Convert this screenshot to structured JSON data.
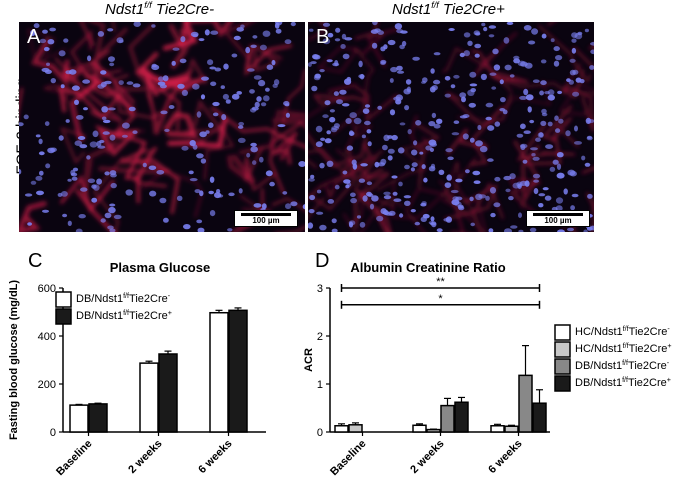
{
  "micrographs": {
    "left": {
      "letter": "A",
      "title_base": "Ndst1",
      "title_sup": "f/f",
      "title_rest": " Tie2Cre-",
      "scale_label": "100 µm"
    },
    "right": {
      "letter": "B",
      "title_base": "Ndst1",
      "title_sup": "f/f",
      "title_rest": " Tie2Cre+",
      "scale_label": "100 µm"
    },
    "row_label": "FGF-2 binding",
    "colors": {
      "background": "#0a0410",
      "vessel": "#d8204a",
      "nuclei": "#7a80f0"
    }
  },
  "chart_data": [
    {
      "letter": "C",
      "type": "bar",
      "title": "Plasma Glucose",
      "ylabel": "Fasting blood glucose (mg/dL)",
      "xlabel": "",
      "categories": [
        "Baseline",
        "2 weeks",
        "6 weeks"
      ],
      "ylim": [
        0,
        600
      ],
      "yticks": [
        "0",
        "200",
        "400",
        "600"
      ],
      "legend_position": "top-left",
      "series": [
        {
          "name_base": "DB/Ndst1",
          "name_sup": "f/f",
          "name_rest": "Tie2Cre",
          "name_sup2": "-",
          "color": "#ffffff",
          "values": [
            112,
            287,
            497
          ],
          "errors": [
            3,
            8,
            10
          ]
        },
        {
          "name_base": "DB/Ndst1",
          "name_sup": "f/f",
          "name_rest": "Tie2Cre",
          "name_sup2": "+",
          "color": "#1a1a1a",
          "values": [
            117,
            325,
            507
          ],
          "errors": [
            3,
            12,
            10
          ]
        }
      ]
    },
    {
      "letter": "D",
      "type": "bar",
      "title": "Albumin Creatinine Ratio",
      "ylabel": "ACR",
      "xlabel": "",
      "categories": [
        "Baseline",
        "2 weeks",
        "6 weeks"
      ],
      "ylim": [
        0,
        3
      ],
      "yticks": [
        "0",
        "1",
        "2",
        "3"
      ],
      "legend_position": "right",
      "series": [
        {
          "name_base": "HC/Ndst1",
          "name_sup": "f/f",
          "name_rest": "Tie2Cre",
          "name_sup2": "-",
          "color": "#ffffff",
          "values": [
            0.13,
            0.14,
            0.13
          ],
          "errors": [
            0.04,
            0.03,
            0.03
          ]
        },
        {
          "name_base": "HC/Ndst1",
          "name_sup": "f/f",
          "name_rest": "Tie2Cre",
          "name_sup2": "+",
          "color": "#c8c8c8",
          "values": [
            0.15,
            0.05,
            0.12
          ],
          "errors": [
            0.04,
            0.01,
            0.02
          ]
        },
        {
          "name_base": "DB/Ndst1",
          "name_sup": "f/f",
          "name_rest": "Tie2Cre",
          "name_sup2": "-",
          "color": "#888888",
          "values": [
            null,
            0.55,
            1.18
          ],
          "errors": [
            null,
            0.15,
            0.62
          ]
        },
        {
          "name_base": "DB/Ndst1",
          "name_sup": "f/f",
          "name_rest": "Tie2Cre",
          "name_sup2": "+",
          "color": "#1a1a1a",
          "values": [
            null,
            0.62,
            0.6
          ],
          "errors": [
            null,
            0.1,
            0.28
          ]
        }
      ],
      "annotations": [
        {
          "label": "**",
          "from_category": 0,
          "to_category": 2,
          "y": 3.0
        },
        {
          "label": "*",
          "from_category": 0,
          "to_category": 2,
          "y": 2.65
        }
      ]
    }
  ]
}
